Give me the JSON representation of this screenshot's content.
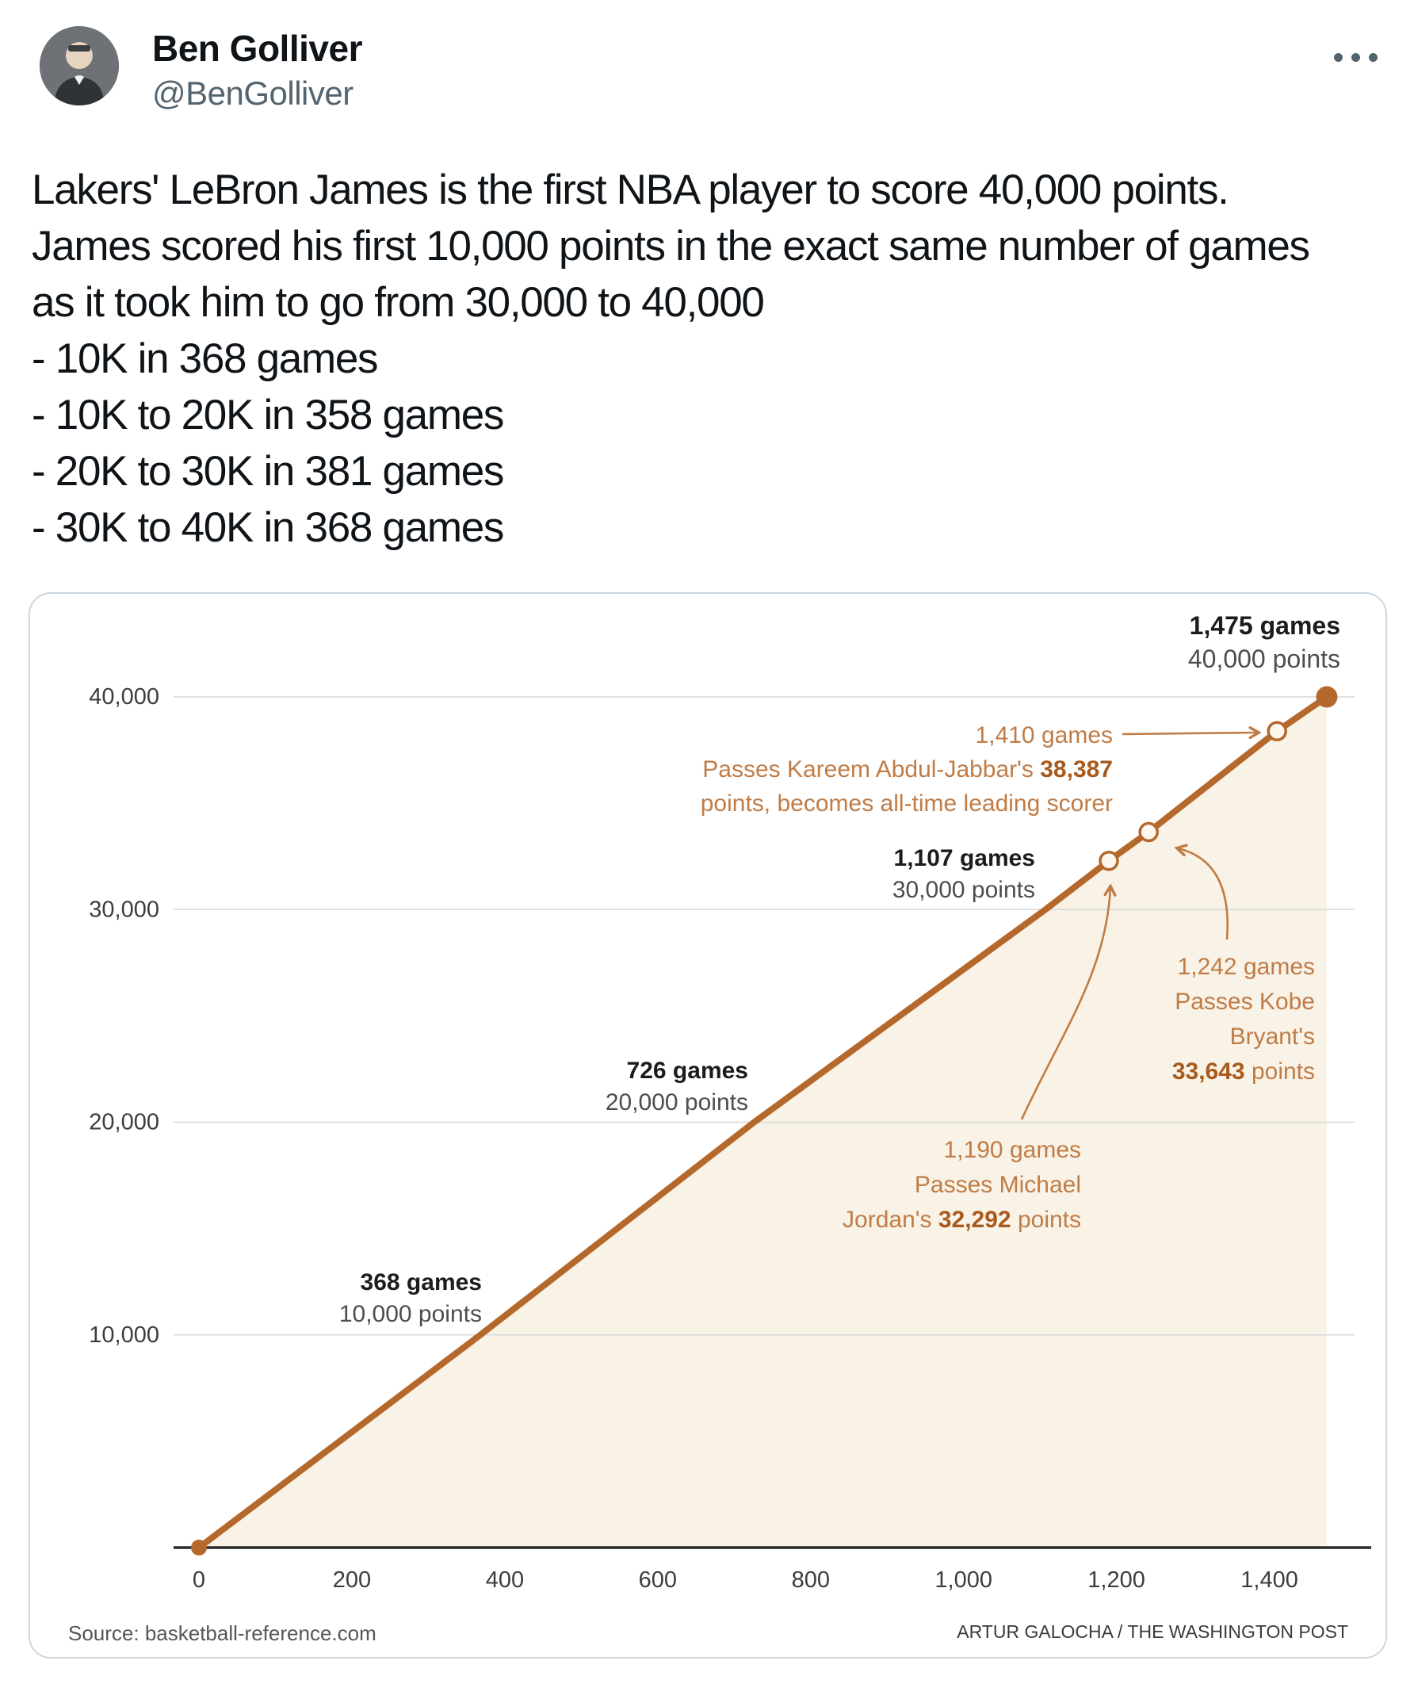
{
  "tweet": {
    "author": {
      "name": "Ben Golliver",
      "handle": "@BenGolliver"
    },
    "more_label": "More",
    "text_lines": [
      "Lakers' LeBron James is the first NBA player to score 40,000 points.",
      "James scored his first 10,000 points in the exact same number of games",
      "as it took him to go from 30,000 to 40,000",
      "- 10K in 368 games",
      "- 10K to 20K in 358 games",
      "- 20K to 30K in 381 games",
      "- 30K to 40K in 368 games"
    ]
  },
  "chart_data": {
    "type": "line",
    "title": "",
    "xlabel": "",
    "ylabel": "",
    "series": [
      {
        "name": "LeBron James cumulative career points by games played",
        "x": [
          0,
          368,
          726,
          1107,
          1190,
          1242,
          1410,
          1475
        ],
        "y": [
          0,
          10000,
          20000,
          30000,
          32292,
          33643,
          38387,
          40000
        ]
      }
    ],
    "xlim": [
      0,
      1511
    ],
    "ylim": [
      0,
      40000
    ],
    "grid": true,
    "legend": false,
    "x_tick_values": [
      0,
      200,
      400,
      600,
      800,
      1000,
      1200,
      1400
    ],
    "x_tick_labels": [
      "0",
      "200",
      "400",
      "600",
      "800",
      "1,000",
      "1,200",
      "1,400"
    ],
    "y_tick_values": [
      10000,
      20000,
      30000,
      40000
    ],
    "y_tick_labels": [
      "10,000",
      "20,000",
      "30,000",
      "40,000"
    ],
    "annotations": [
      {
        "id": "endpoint",
        "style": "dark",
        "anchor": {
          "games": 1475,
          "points": 40000
        },
        "lines": [
          [
            {
              "t": "1,475 games",
              "b": true
            }
          ],
          [
            {
              "t": "40,000 points"
            }
          ]
        ]
      },
      {
        "id": "milestone-10k",
        "style": "dark",
        "anchor": {
          "games": 368,
          "points": 10000
        },
        "lines": [
          [
            {
              "t": "368 games",
              "b": true
            }
          ],
          [
            {
              "t": "10,000 points"
            }
          ]
        ]
      },
      {
        "id": "milestone-20k",
        "style": "dark",
        "anchor": {
          "games": 726,
          "points": 20000
        },
        "lines": [
          [
            {
              "t": "726 games",
              "b": true
            }
          ],
          [
            {
              "t": "20,000 points"
            }
          ]
        ]
      },
      {
        "id": "milestone-30k",
        "style": "dark",
        "anchor": {
          "games": 1107,
          "points": 30000
        },
        "lines": [
          [
            {
              "t": "1,107 games",
              "b": true
            }
          ],
          [
            {
              "t": "30,000 points"
            }
          ]
        ]
      },
      {
        "id": "kareem",
        "style": "orange",
        "marker": {
          "games": 1410,
          "points": 38387
        },
        "lines": [
          [
            {
              "t": "1,410 games"
            }
          ],
          [
            {
              "t": "Passes Kareem Abdul-Jabbar's "
            },
            {
              "t": "38,387",
              "b": true
            }
          ],
          [
            {
              "t": "points, becomes all-time leading scorer"
            }
          ]
        ]
      },
      {
        "id": "kobe",
        "style": "orange",
        "marker": {
          "games": 1242,
          "points": 33643
        },
        "lines": [
          [
            {
              "t": "1,242 games"
            }
          ],
          [
            {
              "t": "Passes Kobe"
            }
          ],
          [
            {
              "t": "Bryant's"
            }
          ],
          [
            {
              "t": "33,643",
              "b": true
            },
            {
              "t": " points"
            }
          ]
        ]
      },
      {
        "id": "jordan",
        "style": "orange",
        "marker": {
          "games": 1190,
          "points": 32292
        },
        "lines": [
          [
            {
              "t": "1,190 games"
            }
          ],
          [
            {
              "t": "Passes Michael"
            }
          ],
          [
            {
              "t": "Jordan's "
            },
            {
              "t": "32,292",
              "b": true
            },
            {
              "t": " points"
            }
          ]
        ]
      }
    ],
    "footer": {
      "source": "Source: basketball-reference.com",
      "credit": "ARTUR GALOCHA / THE WASHINGTON POST"
    },
    "colors": {
      "line": "#b5682b",
      "area": "#f9f2e6",
      "orange": "#c07c46",
      "orange_bold": "#a85a1d",
      "dark": "#1c1c1c",
      "secondary": "#4d4d4d",
      "grid": "#d8d8d8",
      "axis": "#2a2a2a",
      "tick": "#3d3d3d"
    }
  }
}
